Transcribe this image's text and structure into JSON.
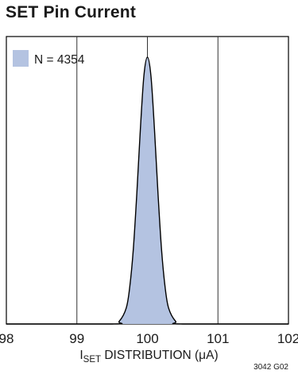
{
  "title": "SET Pin Current",
  "figure_id": "3042 G02",
  "xlabel": {
    "main": "I",
    "sub": "SET",
    "rest": " DISTRIBUTION (μA)"
  },
  "legend": {
    "label": "N = 4354"
  },
  "colors": {
    "fill": "#b4c3e1",
    "stroke": "#000000",
    "grid": "#333333"
  },
  "chart_data": {
    "type": "area",
    "title": "SET Pin Current",
    "xlabel": "I_SET DISTRIBUTION (μA)",
    "ylabel": "",
    "xlim": [
      98,
      102
    ],
    "xticks": [
      "98",
      "99",
      "100",
      "101",
      "102"
    ],
    "grid": true,
    "legend_position": "top-left",
    "series": [
      {
        "name": "N = 4354",
        "x": [
          98.0,
          99.5,
          99.6,
          99.7,
          99.75,
          99.8,
          99.85,
          99.9,
          99.95,
          100.0,
          100.05,
          100.1,
          100.15,
          100.2,
          100.25,
          100.3,
          100.4,
          100.5,
          102.0
        ],
        "y": [
          0,
          0,
          0.01,
          0.06,
          0.14,
          0.28,
          0.49,
          0.73,
          0.93,
          1.0,
          0.93,
          0.73,
          0.49,
          0.28,
          0.14,
          0.06,
          0.01,
          0,
          0
        ]
      }
    ]
  }
}
